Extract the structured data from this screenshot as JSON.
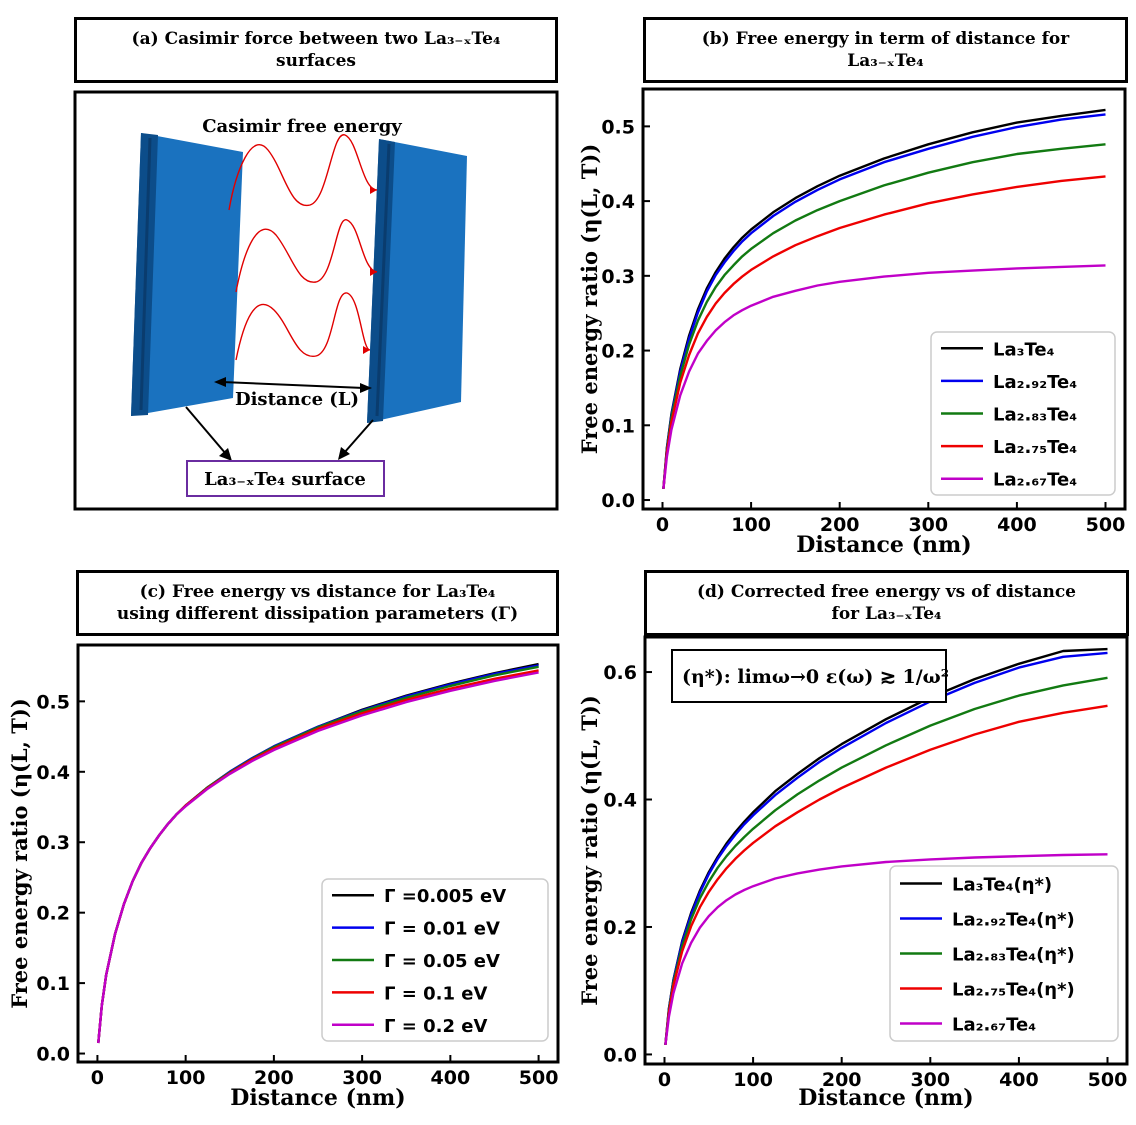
{
  "colors": {
    "black": "#000000",
    "blue": "#0000ee",
    "green": "#127a12",
    "red": "#ee0000",
    "magenta": "#c000c8",
    "plate": "#1a72bf",
    "plate_dark": "#0c4d8a",
    "wave": "#e00000",
    "label_box_border": "#6a2ca0"
  },
  "panel_a": {
    "title_line1": "(a) Casimir force between two La₃₋ₓTe₄",
    "title_line2": "surfaces",
    "wave_label": "Casimir free energy",
    "distance_label": "Distance (L)",
    "surface_label": "La₃₋ₓTe₄ surface",
    "icon": "parallel-plates-diagram"
  },
  "panel_b": {
    "title_line1": "(b) Free energy in term of distance for",
    "title_line2": "La₃₋ₓTe₄",
    "inset": ""
  },
  "panel_c": {
    "title_line1": "(c) Free energy vs distance for La₃Te₄",
    "title_line2": "using different dissipation parameters (Γ)",
    "inset": ""
  },
  "panel_d": {
    "title_line1": "(d) Corrected free energy vs of distance",
    "title_line2": "for La₃₋ₓTe₄",
    "inset": "(η*):  limω→0 ε(ω) ≳ 1/ω²"
  },
  "chart_data": [
    {
      "id": "b",
      "type": "line",
      "title": "Free energy in term of distance for La₃₋ₓTe₄",
      "xlabel": "Distance (nm)",
      "ylabel": "Free energy ratio (η(L, T))",
      "xlim": [
        -22,
        522
      ],
      "ylim": [
        -0.012,
        0.55
      ],
      "xticks": [
        0,
        100,
        200,
        300,
        400,
        500
      ],
      "yticks": [
        0.0,
        0.1,
        0.2,
        0.3,
        0.4,
        0.5
      ],
      "ytick_labels": [
        "0.0",
        "0.1",
        "0.2",
        "0.3",
        "0.4",
        "0.5"
      ],
      "legend_position": "lower-right",
      "x": [
        1,
        5,
        10,
        20,
        30,
        40,
        50,
        60,
        70,
        80,
        90,
        100,
        125,
        150,
        175,
        200,
        250,
        300,
        350,
        400,
        450,
        500
      ],
      "series": [
        {
          "name": "La₃Te₄",
          "color": "#000000",
          "values": [
            0.015,
            0.07,
            0.115,
            0.175,
            0.22,
            0.255,
            0.283,
            0.305,
            0.323,
            0.338,
            0.351,
            0.362,
            0.385,
            0.404,
            0.42,
            0.434,
            0.457,
            0.476,
            0.492,
            0.505,
            0.514,
            0.522
          ]
        },
        {
          "name": "La₂.₉₂Te₄",
          "color": "#0000ee",
          "values": [
            0.015,
            0.069,
            0.113,
            0.172,
            0.216,
            0.251,
            0.279,
            0.301,
            0.318,
            0.333,
            0.346,
            0.357,
            0.38,
            0.399,
            0.415,
            0.429,
            0.452,
            0.47,
            0.486,
            0.499,
            0.509,
            0.516
          ]
        },
        {
          "name": "La₂.₈₃Te₄",
          "color": "#127a12",
          "values": [
            0.015,
            0.067,
            0.11,
            0.166,
            0.208,
            0.24,
            0.265,
            0.285,
            0.301,
            0.314,
            0.326,
            0.336,
            0.357,
            0.374,
            0.388,
            0.4,
            0.421,
            0.438,
            0.452,
            0.463,
            0.47,
            0.476
          ]
        },
        {
          "name": "La₂.₇₅Te₄",
          "color": "#ee0000",
          "values": [
            0.015,
            0.064,
            0.104,
            0.157,
            0.194,
            0.223,
            0.245,
            0.263,
            0.277,
            0.289,
            0.299,
            0.308,
            0.326,
            0.341,
            0.353,
            0.364,
            0.382,
            0.397,
            0.409,
            0.419,
            0.427,
            0.433
          ]
        },
        {
          "name": "La₂.₆₇Te₄",
          "color": "#c000c8",
          "values": [
            0.015,
            0.058,
            0.094,
            0.14,
            0.172,
            0.196,
            0.213,
            0.227,
            0.238,
            0.247,
            0.254,
            0.26,
            0.272,
            0.28,
            0.287,
            0.292,
            0.299,
            0.304,
            0.307,
            0.31,
            0.312,
            0.314
          ]
        }
      ]
    },
    {
      "id": "c",
      "type": "line",
      "title": "Free energy vs distance for La₃Te₄ using different dissipation parameters (Γ)",
      "xlabel": "Distance (nm)",
      "ylabel": "Free energy ratio (η(L, T))",
      "xlim": [
        -22,
        522
      ],
      "ylim": [
        -0.012,
        0.58
      ],
      "xticks": [
        0,
        100,
        200,
        300,
        400,
        500
      ],
      "yticks": [
        0.0,
        0.1,
        0.2,
        0.3,
        0.4,
        0.5
      ],
      "ytick_labels": [
        "0.0",
        "0.1",
        "0.2",
        "0.3",
        "0.4",
        "0.5"
      ],
      "legend_position": "lower-right",
      "x": [
        1,
        5,
        10,
        20,
        30,
        40,
        50,
        60,
        70,
        80,
        90,
        100,
        125,
        150,
        175,
        200,
        250,
        300,
        350,
        400,
        450,
        500
      ],
      "series": [
        {
          "name": "Γ =0.005 eV",
          "color": "#000000",
          "values": [
            0.015,
            0.068,
            0.112,
            0.17,
            0.212,
            0.245,
            0.271,
            0.292,
            0.31,
            0.326,
            0.34,
            0.352,
            0.378,
            0.4,
            0.419,
            0.436,
            0.464,
            0.488,
            0.508,
            0.525,
            0.54,
            0.553
          ]
        },
        {
          "name": "Γ = 0.01 eV",
          "color": "#0000ee",
          "values": [
            0.015,
            0.068,
            0.112,
            0.17,
            0.212,
            0.245,
            0.271,
            0.292,
            0.31,
            0.326,
            0.34,
            0.352,
            0.378,
            0.4,
            0.419,
            0.436,
            0.464,
            0.487,
            0.507,
            0.524,
            0.539,
            0.551
          ]
        },
        {
          "name": "Γ = 0.05 eV",
          "color": "#127a12",
          "values": [
            0.015,
            0.068,
            0.112,
            0.17,
            0.212,
            0.245,
            0.271,
            0.292,
            0.31,
            0.326,
            0.34,
            0.352,
            0.378,
            0.399,
            0.418,
            0.435,
            0.463,
            0.486,
            0.505,
            0.522,
            0.537,
            0.549
          ]
        },
        {
          "name": "Γ = 0.1 eV",
          "color": "#ee0000",
          "values": [
            0.015,
            0.068,
            0.112,
            0.17,
            0.212,
            0.245,
            0.271,
            0.292,
            0.31,
            0.326,
            0.34,
            0.352,
            0.377,
            0.398,
            0.417,
            0.433,
            0.461,
            0.483,
            0.502,
            0.518,
            0.532,
            0.544
          ]
        },
        {
          "name": "Γ = 0.2 eV",
          "color": "#c000c8",
          "values": [
            0.015,
            0.068,
            0.112,
            0.17,
            0.212,
            0.245,
            0.271,
            0.292,
            0.31,
            0.326,
            0.34,
            0.351,
            0.376,
            0.397,
            0.415,
            0.431,
            0.458,
            0.48,
            0.499,
            0.515,
            0.529,
            0.541
          ]
        }
      ]
    },
    {
      "id": "d",
      "type": "line",
      "title": "Corrected free energy vs of distance for La₃₋ₓTe₄",
      "xlabel": "Distance (nm)",
      "ylabel": "Free energy ratio (η(L, T))",
      "xlim": [
        -22,
        522
      ],
      "ylim": [
        -0.015,
        0.655
      ],
      "xticks": [
        0,
        100,
        200,
        300,
        400,
        500
      ],
      "yticks": [
        0.0,
        0.2,
        0.4,
        0.6
      ],
      "ytick_labels": [
        "0.0",
        "0.2",
        "0.4",
        "0.6"
      ],
      "legend_position": "lower-right",
      "x": [
        1,
        5,
        10,
        20,
        30,
        40,
        50,
        60,
        70,
        80,
        90,
        100,
        125,
        150,
        175,
        200,
        250,
        300,
        350,
        400,
        450,
        500
      ],
      "series": [
        {
          "name": "La₃Te₄(η*)",
          "color": "#000000",
          "values": [
            0.015,
            0.072,
            0.117,
            0.178,
            0.222,
            0.257,
            0.286,
            0.31,
            0.331,
            0.349,
            0.365,
            0.38,
            0.413,
            0.44,
            0.465,
            0.487,
            0.526,
            0.56,
            0.589,
            0.613,
            0.633,
            0.636
          ]
        },
        {
          "name": "La₂.₉₂Te₄(η*)",
          "color": "#0000ee",
          "values": [
            0.015,
            0.071,
            0.116,
            0.176,
            0.219,
            0.254,
            0.283,
            0.307,
            0.327,
            0.345,
            0.361,
            0.375,
            0.407,
            0.434,
            0.459,
            0.481,
            0.52,
            0.554,
            0.583,
            0.607,
            0.624,
            0.63
          ]
        },
        {
          "name": "La₂.₈₃Te₄(η*)",
          "color": "#127a12",
          "values": [
            0.015,
            0.069,
            0.113,
            0.17,
            0.212,
            0.245,
            0.271,
            0.293,
            0.311,
            0.327,
            0.341,
            0.354,
            0.383,
            0.408,
            0.43,
            0.45,
            0.485,
            0.516,
            0.542,
            0.563,
            0.579,
            0.591
          ]
        },
        {
          "name": "La₂.₇₅Te₄(η*)",
          "color": "#ee0000",
          "values": [
            0.015,
            0.066,
            0.108,
            0.162,
            0.201,
            0.231,
            0.255,
            0.275,
            0.292,
            0.307,
            0.32,
            0.332,
            0.358,
            0.38,
            0.4,
            0.418,
            0.45,
            0.478,
            0.502,
            0.522,
            0.536,
            0.547
          ]
        },
        {
          "name": "La₂.₆₇Te₄",
          "color": "#c000c8",
          "values": [
            0.015,
            0.059,
            0.096,
            0.143,
            0.175,
            0.199,
            0.217,
            0.231,
            0.242,
            0.251,
            0.258,
            0.264,
            0.276,
            0.284,
            0.29,
            0.295,
            0.302,
            0.306,
            0.309,
            0.311,
            0.313,
            0.314
          ]
        }
      ]
    }
  ]
}
